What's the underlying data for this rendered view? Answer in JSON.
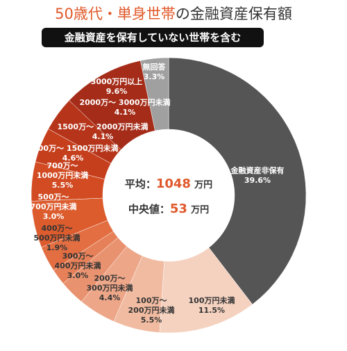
{
  "chart_data": {
    "type": "donut",
    "title": [
      "50歳代・単身世帯",
      "の金融資産保有額"
    ],
    "subtitle": "金融資産を保有していない世帯を含む",
    "center": [
      {
        "label": "平均：",
        "value": 1048,
        "unit": "万円"
      },
      {
        "label": "中央値：",
        "value": 53,
        "unit": "万円"
      }
    ],
    "categories": [
      "金融資産非保有",
      "100万円未満",
      "100万～\n200万円未満",
      "200万～\n300万円未満",
      "300万～\n400万円未満",
      "400万～\n500万円未満",
      "500万～\n700万円未満",
      "700万～\n1000万円未満",
      "1000万～ 1500万円未満",
      "1500万～ 2000万円未満",
      "2000万～ 3000万円未満",
      "3000万円以上",
      "無回答"
    ],
    "values": [
      39.6,
      11.5,
      5.5,
      4.4,
      3.0,
      1.9,
      3.0,
      5.5,
      4.6,
      4.1,
      4.1,
      9.6,
      3.3
    ],
    "value_labels": [
      "39.6%",
      "11.5%",
      "5.5%",
      "4.4%",
      "3.0%",
      "1.9%",
      "3.0%",
      "5.5%",
      "4.6%",
      "4.1%",
      "4.1%",
      "9.6%",
      "3.3%"
    ],
    "colors": [
      "#555555",
      "#f5d2c0",
      "#f1bba1",
      "#eda688",
      "#e9926f",
      "#e68058",
      "#e26e42",
      "#dc5c2e",
      "#d24b22",
      "#c63f1d",
      "#b6351a",
      "#a42c18",
      "#a0a0a0"
    ]
  }
}
